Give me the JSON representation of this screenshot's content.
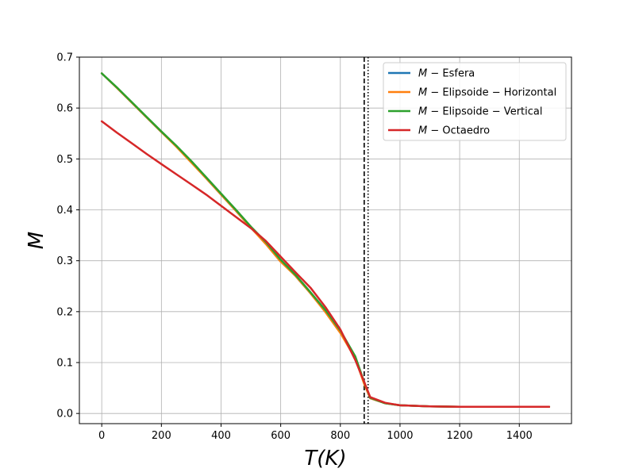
{
  "chart_data": {
    "type": "line",
    "xlabel": "T(K)",
    "ylabel": "M",
    "xlim": [
      -75,
      1575
    ],
    "ylim": [
      -0.02,
      0.7
    ],
    "xticks": [
      0,
      200,
      400,
      600,
      800,
      1000,
      1200,
      1400
    ],
    "yticks": [
      0.0,
      0.1,
      0.2,
      0.3,
      0.4,
      0.5,
      0.6,
      0.7
    ],
    "xtick_labels": [
      "0",
      "200",
      "400",
      "600",
      "800",
      "1000",
      "1200",
      "1400"
    ],
    "ytick_labels": [
      "0.0",
      "0.1",
      "0.2",
      "0.3",
      "0.4",
      "0.5",
      "0.6",
      "0.7"
    ],
    "grid": true,
    "legend_position": "top-right",
    "vlines": [
      {
        "x": 880,
        "style": "dashed",
        "color": "#000000"
      },
      {
        "x": 893,
        "style": "dotted",
        "color": "#000000"
      }
    ],
    "series": [
      {
        "name": "M − Esfera",
        "legend_math": "M",
        "legend_text": " − Esfera",
        "color": "#1f77b4",
        "x": [
          0,
          50,
          100,
          150,
          200,
          250,
          300,
          350,
          400,
          450,
          500,
          550,
          600,
          650,
          700,
          750,
          800,
          850,
          880,
          900,
          950,
          1000,
          1100,
          1200,
          1300,
          1400,
          1500
        ],
        "y": [
          0.668,
          0.64,
          0.611,
          0.582,
          0.553,
          0.525,
          0.494,
          0.462,
          0.43,
          0.398,
          0.365,
          0.335,
          0.3,
          0.27,
          0.236,
          0.2,
          0.16,
          0.11,
          0.06,
          0.03,
          0.02,
          0.016,
          0.014,
          0.013,
          0.013,
          0.013,
          0.013
        ]
      },
      {
        "name": "M − Elipsoide − Horizontal",
        "legend_math": "M",
        "legend_text": " − Elipsoide − Horizontal",
        "color": "#ff7f0e",
        "x": [
          0,
          50,
          100,
          150,
          200,
          250,
          300,
          350,
          400,
          450,
          500,
          550,
          600,
          650,
          700,
          750,
          800,
          850,
          880,
          900,
          950,
          1000,
          1100,
          1200,
          1300,
          1400,
          1500
        ],
        "y": [
          0.668,
          0.64,
          0.611,
          0.582,
          0.553,
          0.524,
          0.493,
          0.462,
          0.43,
          0.398,
          0.365,
          0.333,
          0.298,
          0.27,
          0.236,
          0.199,
          0.158,
          0.108,
          0.058,
          0.03,
          0.02,
          0.016,
          0.014,
          0.013,
          0.013,
          0.013,
          0.013
        ]
      },
      {
        "name": "M − Elipsoide − Vertical",
        "legend_math": "M",
        "legend_text": " − Elipsoide − Vertical",
        "color": "#2ca02c",
        "x": [
          0,
          50,
          100,
          150,
          200,
          250,
          300,
          350,
          400,
          450,
          500,
          550,
          600,
          650,
          700,
          750,
          800,
          850,
          880,
          900,
          950,
          1000,
          1100,
          1200,
          1300,
          1400,
          1500
        ],
        "y": [
          0.668,
          0.641,
          0.612,
          0.583,
          0.554,
          0.526,
          0.496,
          0.464,
          0.432,
          0.4,
          0.367,
          0.337,
          0.302,
          0.272,
          0.238,
          0.203,
          0.163,
          0.112,
          0.062,
          0.031,
          0.02,
          0.016,
          0.014,
          0.013,
          0.013,
          0.013,
          0.013
        ]
      },
      {
        "name": "M − Octaedro",
        "legend_math": "M",
        "legend_text": " − Octaedro",
        "color": "#d62728",
        "x": [
          0,
          50,
          100,
          150,
          200,
          250,
          300,
          350,
          400,
          450,
          500,
          550,
          600,
          650,
          700,
          750,
          800,
          850,
          880,
          900,
          950,
          1000,
          1100,
          1200,
          1300,
          1400,
          1500
        ],
        "y": [
          0.574,
          0.552,
          0.531,
          0.51,
          0.49,
          0.47,
          0.45,
          0.43,
          0.408,
          0.386,
          0.364,
          0.339,
          0.308,
          0.277,
          0.247,
          0.209,
          0.165,
          0.105,
          0.062,
          0.032,
          0.021,
          0.016,
          0.014,
          0.013,
          0.013,
          0.013,
          0.013
        ]
      }
    ]
  }
}
